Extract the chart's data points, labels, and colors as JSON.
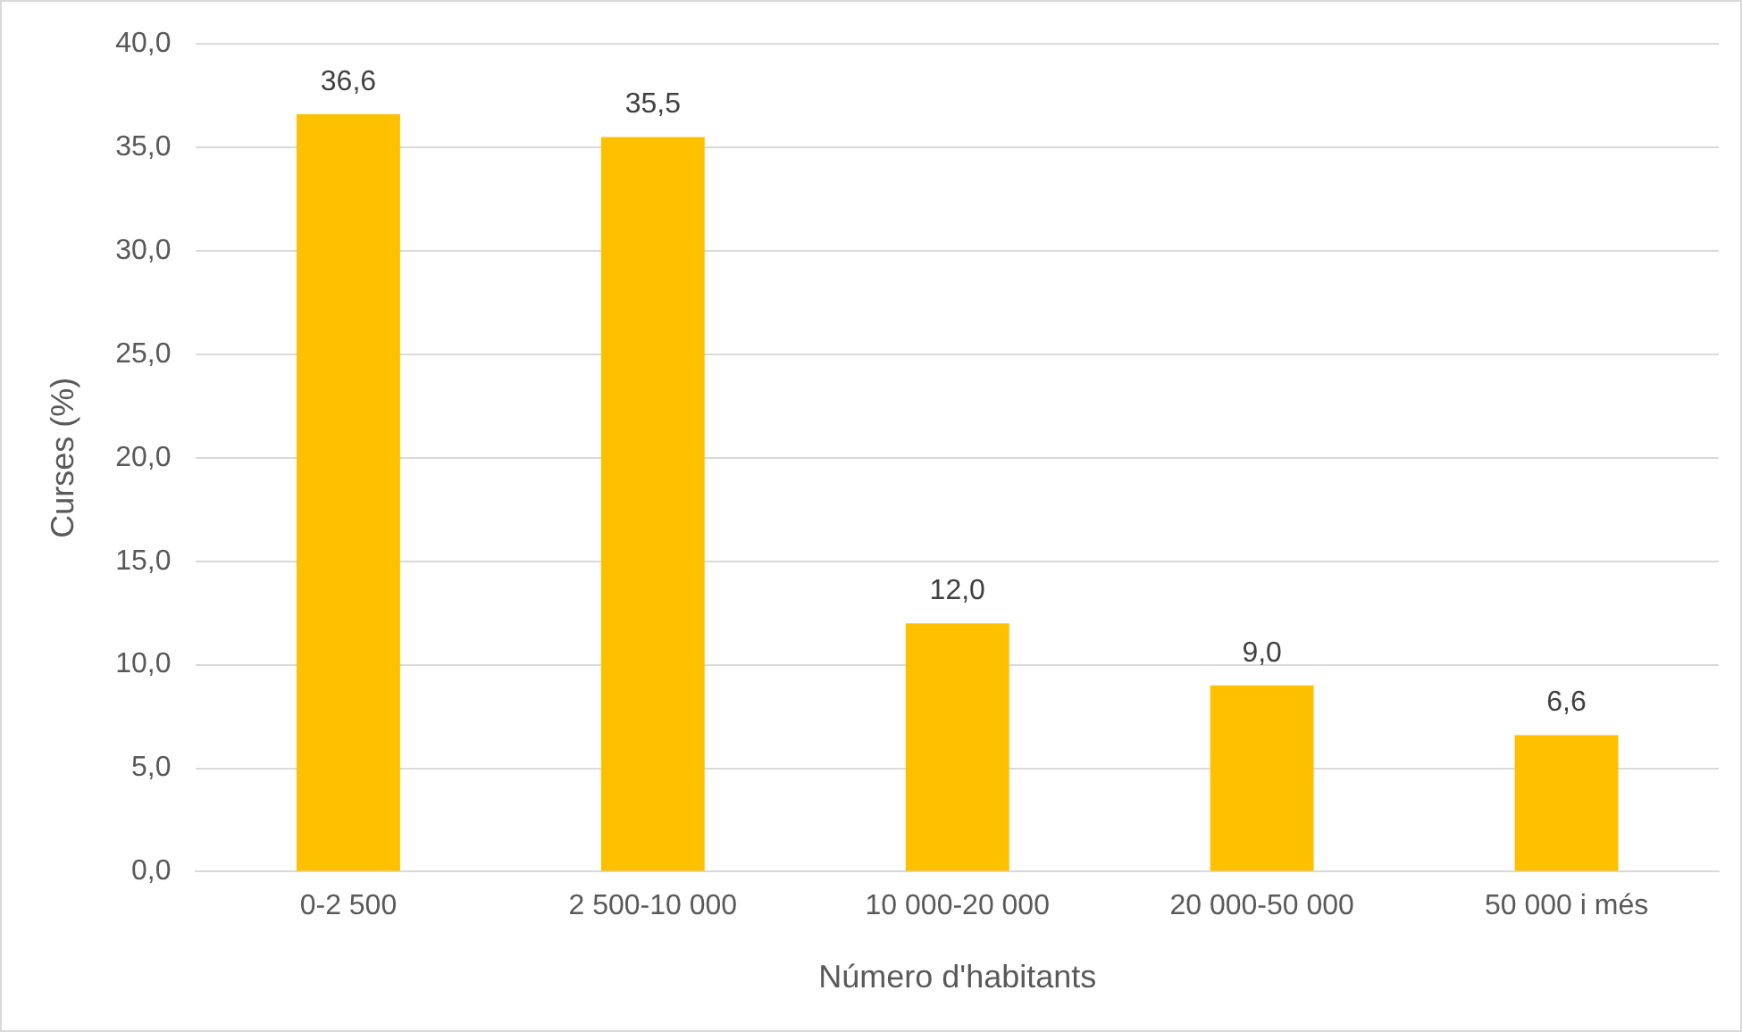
{
  "chart_data": {
    "type": "bar",
    "xlabel": "Número d'habitants",
    "ylabel": "Curses (%)",
    "categories": [
      "0-2 500",
      "2 500-10 000",
      "10 000-20 000",
      "20 000-50 000",
      "50 000 i més"
    ],
    "values": [
      36.6,
      35.5,
      12.0,
      9.0,
      6.6
    ],
    "value_labels": [
      "36,6",
      "35,5",
      "12,0",
      "9,0",
      "6,6"
    ],
    "color": "#ffc000",
    "ylim": [
      0,
      40
    ],
    "yticks": [
      {
        "value": 0,
        "label": "0,0"
      },
      {
        "value": 5,
        "label": "5,0"
      },
      {
        "value": 10,
        "label": "10,0"
      },
      {
        "value": 15,
        "label": "15,0"
      },
      {
        "value": 20,
        "label": "20,0"
      },
      {
        "value": 25,
        "label": "25,0"
      },
      {
        "value": 30,
        "label": "30,0"
      },
      {
        "value": 35,
        "label": "35,0"
      },
      {
        "value": 40,
        "label": "40,0"
      }
    ],
    "grid": "y",
    "legend": false
  }
}
